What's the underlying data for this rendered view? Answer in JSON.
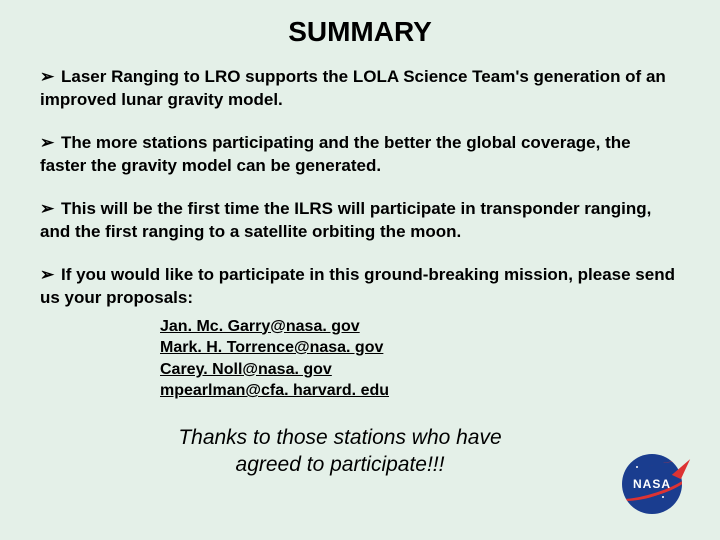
{
  "slide": {
    "title": "SUMMARY",
    "background_color": "#e4f0e8",
    "bullet_marker": "➢",
    "bullets": {
      "b1": "Laser Ranging to LRO supports the LOLA Science Team's generation of an improved lunar gravity model.",
      "b2": "The more stations participating and the better the global coverage, the faster the gravity model can be generated.",
      "b3": "This will be the first time the ILRS will participate in transponder ranging, and the first ranging to a satellite orbiting the moon.",
      "b4": "If you would like to participate in this ground-breaking mission, please send us your proposals:"
    },
    "emails": {
      "e1": "Jan. Mc. Garry@nasa. gov",
      "e2": "Mark. H. Torrence@nasa. gov",
      "e3": "Carey. Noll@nasa. gov",
      "e4": "mpearlman@cfa. harvard. edu"
    },
    "thanks_line1": "Thanks to those stations who have",
    "thanks_line2": "agreed  to participate!!!",
    "logo": {
      "name": "NASA",
      "circle_color": "#1a3d8f",
      "swoosh_color": "#d33",
      "text_color": "#ffffff"
    },
    "typography": {
      "title_fontsize": 28,
      "bullet_fontsize": 17,
      "email_fontsize": 16,
      "thanks_fontsize": 21,
      "font_family": "Arial"
    }
  }
}
